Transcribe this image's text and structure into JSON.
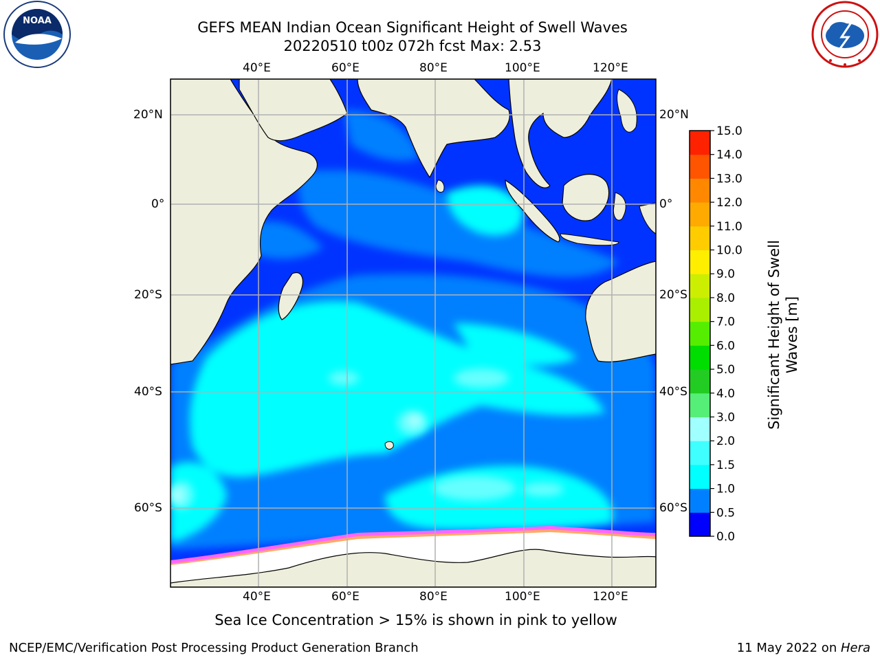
{
  "header": {
    "title_line1": "GEFS MEAN Indian Ocean Significant Height of Swell Waves",
    "title_line2": "20220510 t00z 072h fcst   Max: 2.53"
  },
  "logos": {
    "left_name": "noaa-logo",
    "left_text": "NOAA",
    "right_name": "national-weather-service-logo"
  },
  "map": {
    "lon_range": [
      20,
      130
    ],
    "lat_range": [
      -76,
      27
    ],
    "lon_ticks": [
      "40°E",
      "60°E",
      "80°E",
      "100°E",
      "120°E"
    ],
    "lat_ticks": [
      "20°N",
      "0°",
      "20°S",
      "40°S",
      "60°S"
    ],
    "colors": {
      "land": "#eeeedc",
      "ice": "#ffffff",
      "grid": "#b0b0b0",
      "coast": "#000000"
    }
  },
  "colorbar": {
    "label": "Significant Height of Swell Waves [m]",
    "label_line1": "Significant Height of Swell",
    "label_line2": "Waves [m]",
    "ticks": [
      "0.0",
      "0.5",
      "1.0",
      "1.5",
      "2.0",
      "3.0",
      "4.0",
      "5.0",
      "6.0",
      "7.0",
      "8.0",
      "9.0",
      "10.0",
      "11.0",
      "12.0",
      "13.0",
      "14.0",
      "15.0"
    ],
    "colors": [
      "#0000ff",
      "#0080ff",
      "#00ffff",
      "#40ffff",
      "#a0ffff",
      "#55ee77",
      "#22cc22",
      "#00dd00",
      "#55ee00",
      "#aaee00",
      "#ccee00",
      "#ffee00",
      "#ffcc00",
      "#ffaa00",
      "#ff8800",
      "#ff5500",
      "#ff2200",
      "#ff0000"
    ]
  },
  "footer": {
    "note": "Sea Ice Concentration > 15% is shown in pink to yellow",
    "left": "NCEP/EMC/Verification Post Processing Product Generation Branch",
    "right_prefix": "11 May 2022 on ",
    "right_host": "Hera"
  }
}
